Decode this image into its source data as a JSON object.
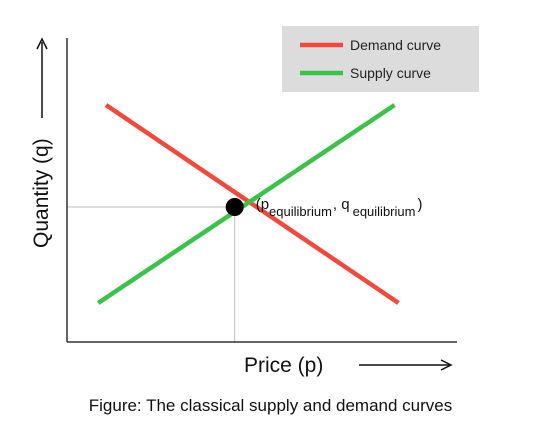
{
  "chart_data": {
    "type": "line",
    "xlabel": "Price (p)",
    "ylabel": "Quantity (q)",
    "xlim": [
      0,
      10
    ],
    "ylim": [
      0,
      10
    ],
    "grid": false,
    "legend_placement": "top-right",
    "series": [
      {
        "name": "Demand curve",
        "color": "#f04a3e",
        "x": [
          1.0,
          8.5
        ],
        "y": [
          7.9,
          1.3
        ]
      },
      {
        "name": "Supply curve",
        "color": "#3cc24a",
        "x": [
          0.8,
          8.4
        ],
        "y": [
          1.3,
          7.9
        ]
      }
    ],
    "equilibrium": {
      "x": 4.3,
      "y": 4.5,
      "p_symbol": "p",
      "p_subscript": "equilibrium",
      "q_symbol": "q",
      "q_subscript": "equilibrium"
    }
  },
  "caption": "Figure: The classical supply and demand curves"
}
